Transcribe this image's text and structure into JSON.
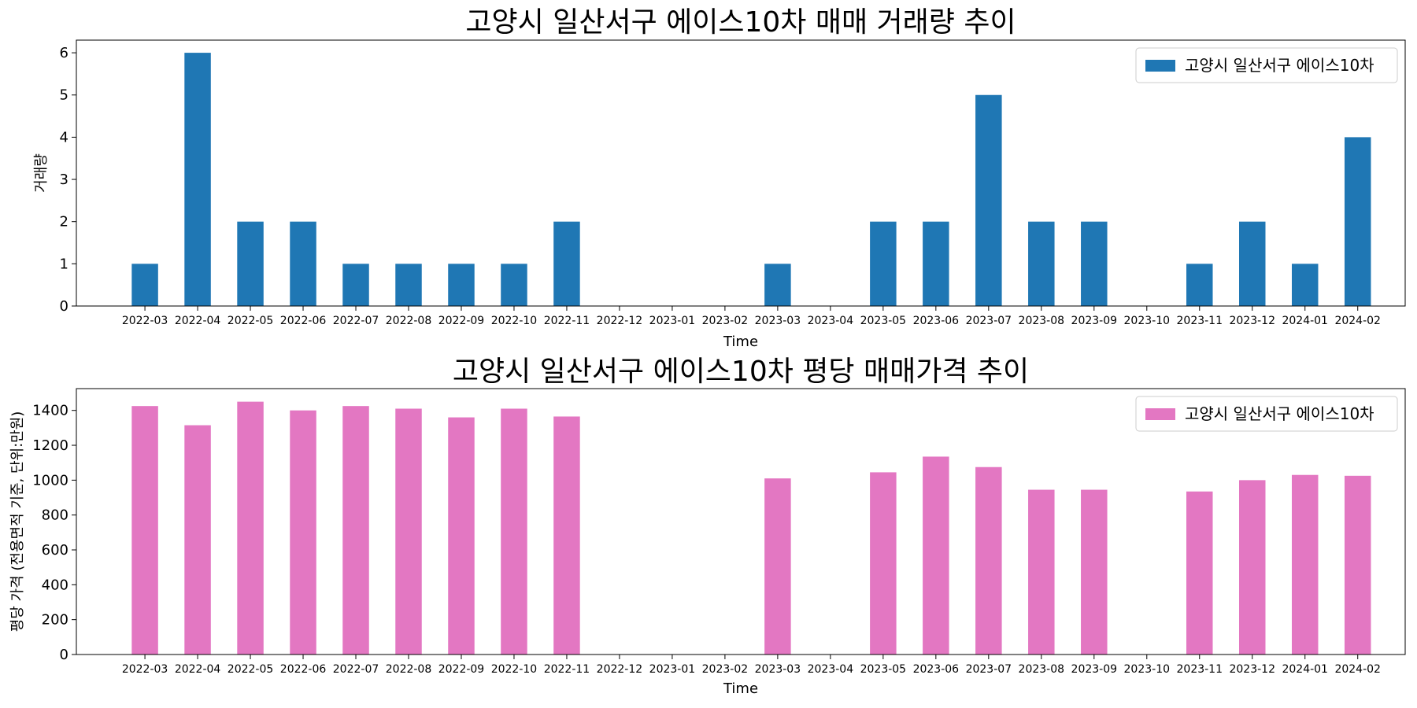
{
  "chart_data": [
    {
      "type": "bar",
      "title": "고양시 일산서구 에이스10차 매매 거래량 추이",
      "xlabel": "Time",
      "ylabel": "거래량",
      "ylim": [
        0,
        6.3
      ],
      "yticks": [
        0,
        1,
        2,
        3,
        4,
        5,
        6
      ],
      "legend_position": "top-right",
      "grid": false,
      "color": "#1f77b4",
      "categories": [
        "2022-03",
        "2022-04",
        "2022-05",
        "2022-06",
        "2022-07",
        "2022-08",
        "2022-09",
        "2022-10",
        "2022-11",
        "2022-12",
        "2023-01",
        "2023-02",
        "2023-03",
        "2023-04",
        "2023-05",
        "2023-06",
        "2023-07",
        "2023-08",
        "2023-09",
        "2023-10",
        "2023-11",
        "2023-12",
        "2024-01",
        "2024-02"
      ],
      "series": [
        {
          "name": "고양시 일산서구 에이스10차",
          "values": [
            1,
            6,
            2,
            2,
            1,
            1,
            1,
            1,
            2,
            0,
            0,
            0,
            1,
            0,
            2,
            2,
            5,
            2,
            2,
            0,
            1,
            2,
            1,
            4
          ]
        }
      ]
    },
    {
      "type": "bar",
      "title": "고양시 일산서구 에이스10차 평당 매매가격 추이",
      "xlabel": "Time",
      "ylabel": "평당 가격 (전용면적 기준, 단위:만원)",
      "ylim": [
        0,
        1525
      ],
      "yticks": [
        0,
        200,
        400,
        600,
        800,
        1000,
        1200,
        1400
      ],
      "legend_position": "top-right",
      "grid": false,
      "color": "#e377c2",
      "categories": [
        "2022-03",
        "2022-04",
        "2022-05",
        "2022-06",
        "2022-07",
        "2022-08",
        "2022-09",
        "2022-10",
        "2022-11",
        "2022-12",
        "2023-01",
        "2023-02",
        "2023-03",
        "2023-04",
        "2023-05",
        "2023-06",
        "2023-07",
        "2023-08",
        "2023-09",
        "2023-10",
        "2023-11",
        "2023-12",
        "2024-01",
        "2024-02"
      ],
      "series": [
        {
          "name": "고양시 일산서구 에이스10차",
          "values": [
            1425,
            1315,
            1450,
            1400,
            1425,
            1410,
            1360,
            1410,
            1365,
            null,
            null,
            null,
            1010,
            null,
            1045,
            1135,
            1075,
            945,
            945,
            null,
            935,
            1000,
            1030,
            1025
          ]
        }
      ]
    }
  ]
}
